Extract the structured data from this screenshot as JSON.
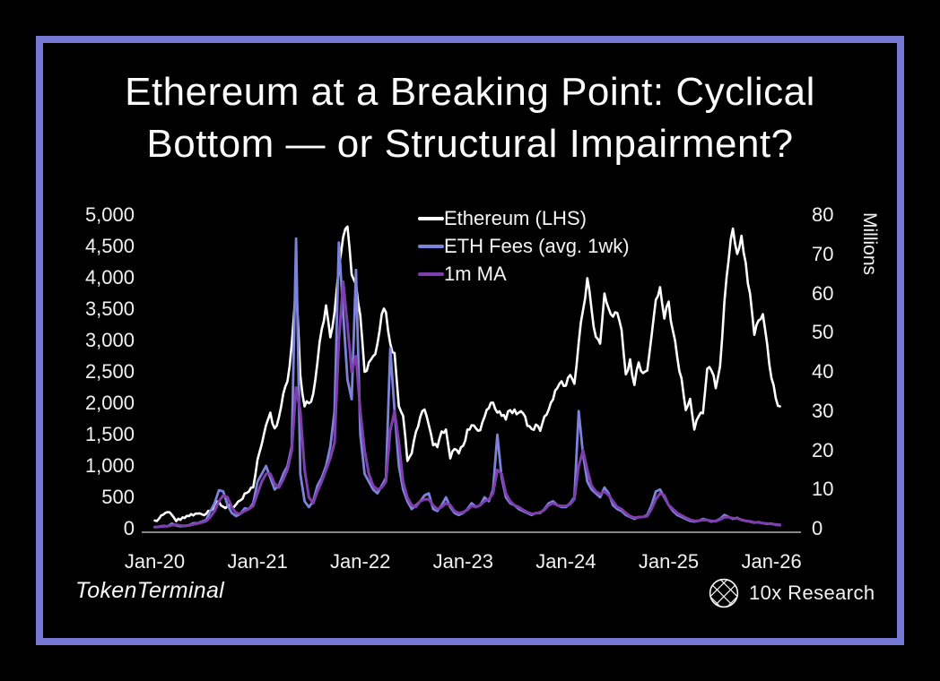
{
  "frame": {
    "border_color": "#7478d2",
    "background": "#000000"
  },
  "title": {
    "line1": "Ethereum at a Breaking Point: Cyclical",
    "line2": "Bottom — or Structural Impairment?"
  },
  "legend": [
    {
      "label": "Ethereum (LHS)",
      "color": "#ffffff"
    },
    {
      "label": "ETH Fees (avg. 1wk)",
      "color": "#7d82da"
    },
    {
      "label": "1m MA",
      "color": "#7e3fad"
    }
  ],
  "footer": {
    "left_brand": "TokenTerminal",
    "right_brand": "10x Research",
    "right_icon": "wireframe-globe-icon"
  },
  "chart_data": {
    "type": "line",
    "x_axis": {
      "labels": [
        "Jan-20",
        "Jan-21",
        "Jan-22",
        "Jan-23",
        "Jan-24",
        "Jan-25",
        "Jan-26"
      ],
      "start_year": 2020,
      "points_per_year": 24
    },
    "left_axis": {
      "ticks": [
        "5,000",
        "4,500",
        "4,000",
        "3,500",
        "3,000",
        "2,500",
        "2,000",
        "1,500",
        "1,000",
        "500",
        "0"
      ],
      "min": 0,
      "max": 5000
    },
    "right_axis": {
      "ticks": [
        "80",
        "70",
        "60",
        "50",
        "40",
        "30",
        "20",
        "10",
        "0"
      ],
      "min": 0,
      "max": 80,
      "label": "Millions"
    },
    "grid": false,
    "legend_position": "top-center-inside",
    "series": [
      {
        "name": "Ethereum (LHS)",
        "axis": "left",
        "color": "#ffffff",
        "width": 2.6,
        "jagged": true,
        "values": [
          130,
          160,
          225,
          265,
          220,
          120,
          140,
          170,
          200,
          210,
          240,
          230,
          235,
          280,
          390,
          430,
          350,
          360,
          345,
          385,
          450,
          560,
          595,
          660,
          1100,
          1350,
          1650,
          1850,
          1600,
          1780,
          2150,
          2350,
          2950,
          3900,
          2450,
          1950,
          2000,
          2150,
          2650,
          3180,
          3560,
          3050,
          3450,
          4150,
          4650,
          4815,
          4050,
          3900,
          3400,
          2500,
          2650,
          2750,
          2950,
          3420,
          3450,
          2950,
          2800,
          1950,
          1800,
          1080,
          1200,
          1550,
          1780,
          1900,
          1650,
          1330,
          1300,
          1550,
          1580,
          1120,
          1270,
          1200,
          1320,
          1580,
          1650,
          1600,
          1570,
          1780,
          1920,
          2010,
          1850,
          1800,
          1740,
          1890,
          1900,
          1850,
          1840,
          1640,
          1590,
          1660,
          1560,
          1790,
          1900,
          2060,
          2240,
          2350,
          2280,
          2450,
          2310,
          2970,
          3480,
          3995,
          3500,
          3060,
          2950,
          3750,
          3510,
          3380,
          3440,
          3170,
          2460,
          2700,
          2290,
          2650,
          2480,
          2520,
          3070,
          3650,
          3850,
          3350,
          3620,
          3150,
          2740,
          2400,
          1890,
          2070,
          1580,
          1790,
          1840,
          2550,
          2520,
          2240,
          2590,
          3610,
          4280,
          4785,
          4380,
          4670,
          4240,
          3750,
          3090,
          3320,
          3420,
          2945,
          2400,
          2080,
          1950
        ]
      },
      {
        "name": "ETH Fees (avg. 1wk)",
        "axis": "right",
        "color": "#7d82da",
        "width": 2.8,
        "jagged": false,
        "values": [
          0.4,
          0.5,
          0.7,
          0.6,
          1.3,
          0.8,
          0.6,
          0.7,
          0.9,
          1.4,
          1.4,
          1.8,
          2.2,
          4.5,
          6.5,
          9.8,
          9.5,
          6,
          4,
          3.2,
          3.8,
          5.2,
          5,
          6.5,
          12,
          14,
          16,
          13,
          10,
          11,
          14,
          16,
          21,
          74,
          14,
          7,
          5.5,
          7,
          11,
          13,
          16,
          21,
          30,
          73,
          55,
          38,
          33,
          66,
          24,
          14,
          12,
          10,
          9,
          11,
          13,
          46,
          30,
          16,
          10,
          7,
          5,
          6,
          7,
          8.5,
          9,
          5,
          4.5,
          6,
          8,
          5.5,
          4,
          3.5,
          4,
          5,
          6.5,
          5.5,
          6,
          8,
          7,
          10,
          24,
          13,
          8,
          6.5,
          6,
          5,
          4.5,
          4,
          3.5,
          4,
          4,
          5,
          6.5,
          7,
          6,
          5.5,
          5.5,
          6.5,
          8,
          30,
          19,
          12,
          10,
          9,
          8,
          10.5,
          9,
          6,
          5,
          4.5,
          3.5,
          3,
          2.5,
          3,
          3,
          3.5,
          6,
          9.5,
          10,
          8,
          6,
          4.5,
          3.5,
          3,
          2.5,
          2,
          1.8,
          2,
          2.5,
          2.2,
          1.8,
          2,
          2.5,
          3.5,
          3,
          2.5,
          2.8,
          2.2,
          2,
          1.8,
          1.5,
          1.7,
          1.4,
          1.2,
          1.3,
          1,
          0.9
        ]
      },
      {
        "name": "1m MA",
        "axis": "right",
        "color": "#7e3fad",
        "width": 3,
        "jagged": false,
        "values": [
          0.4,
          0.45,
          0.6,
          0.65,
          0.9,
          1,
          0.8,
          0.7,
          0.8,
          1.1,
          1.3,
          1.6,
          1.9,
          3,
          4.5,
          7,
          8.5,
          8,
          5.5,
          4,
          3.8,
          4.5,
          5,
          5.8,
          9,
          12,
          14,
          14,
          11.5,
          10.5,
          12.5,
          15,
          20,
          36,
          30,
          15,
          8,
          6.5,
          9.5,
          12,
          15,
          18,
          22,
          48,
          63,
          52,
          40,
          44,
          30,
          20,
          14,
          11,
          10,
          10.5,
          12,
          25,
          30,
          22,
          12,
          8,
          6,
          5.5,
          7,
          7.5,
          7.5,
          6,
          5,
          5.5,
          6.5,
          6,
          4.5,
          4,
          4.2,
          4.8,
          5.8,
          5.5,
          6,
          7,
          7.5,
          9,
          15,
          14,
          9,
          7,
          6,
          5.5,
          4.8,
          4.2,
          3.8,
          3.9,
          4.2,
          4.8,
          6,
          6.5,
          6,
          5.8,
          5.8,
          6.2,
          7.5,
          16,
          20,
          15,
          11,
          9.5,
          8.8,
          9.5,
          8.5,
          7,
          5.5,
          5,
          4,
          3.2,
          2.8,
          2.9,
          3,
          3.2,
          5,
          7.5,
          9,
          8.5,
          6,
          5,
          4,
          3.4,
          2.8,
          2.3,
          2,
          2,
          2.2,
          2.2,
          2,
          1.9,
          2.3,
          2.9,
          2.9,
          2.7,
          2.6,
          2.3,
          2,
          1.9,
          1.6,
          1.6,
          1.4,
          1.3,
          1.2,
          1.1,
          1
        ]
      }
    ]
  }
}
